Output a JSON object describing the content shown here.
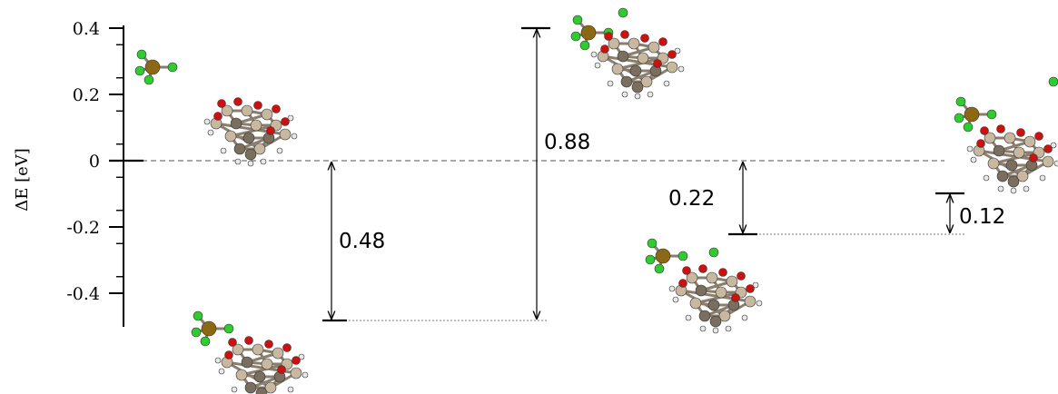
{
  "axis": {
    "title": "ΔE [eV]",
    "ylim": [
      -0.5,
      0.4
    ],
    "ticks": [
      {
        "value": 0.4,
        "label": "0.4"
      },
      {
        "value": 0.2,
        "label": "0.2"
      },
      {
        "value": 0,
        "label": "0"
      },
      {
        "value": -0.2,
        "label": "-0.2"
      },
      {
        "value": -0.4,
        "label": "-0.4"
      }
    ]
  },
  "levels": [
    {
      "name": "initial-state",
      "energy": 0
    },
    {
      "name": "adsorbed-state",
      "energy": -0.48
    },
    {
      "name": "transition-state",
      "energy": 0.4
    },
    {
      "name": "intermediate-state",
      "energy": -0.22
    },
    {
      "name": "final-state",
      "energy": -0.1
    }
  ],
  "gaps": [
    {
      "name": "gap-adsorption",
      "label": "0.48",
      "from": 0,
      "to": -0.48
    },
    {
      "name": "gap-barrier",
      "label": "0.88",
      "from": -0.48,
      "to": 0.4
    },
    {
      "name": "gap-intermediate",
      "label": "0.22",
      "from": 0,
      "to": -0.22
    },
    {
      "name": "gap-final",
      "label": "0.12",
      "from": -0.22,
      "to": -0.1
    }
  ],
  "colors": {
    "metal": "#8b6914",
    "chlorine": "#2ecc2e",
    "oxygen": "#cc1111",
    "carbon": "#c8b8a0",
    "carbon_dark": "#7a6e5e",
    "hydrogen": "#e8e8e8"
  }
}
